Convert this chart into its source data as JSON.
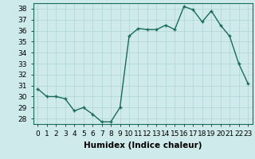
{
  "x": [
    0,
    1,
    2,
    3,
    4,
    5,
    6,
    7,
    8,
    9,
    10,
    11,
    12,
    13,
    14,
    15,
    16,
    17,
    18,
    19,
    20,
    21,
    22,
    23
  ],
  "y": [
    30.7,
    30.0,
    30.0,
    29.8,
    28.7,
    29.0,
    28.4,
    27.7,
    27.7,
    29.0,
    35.5,
    36.2,
    36.1,
    36.1,
    36.5,
    36.1,
    38.2,
    37.9,
    36.8,
    37.8,
    36.5,
    35.5,
    33.0,
    31.2
  ],
  "line_color": "#1a6b5a",
  "marker": "+",
  "marker_size": 3.5,
  "bg_color": "#ceeaea",
  "grid_color": "#b0d4d4",
  "xlabel": "Humidex (Indice chaleur)",
  "xlim": [
    -0.5,
    23.5
  ],
  "ylim": [
    27.5,
    38.5
  ],
  "yticks": [
    28,
    29,
    30,
    31,
    32,
    33,
    34,
    35,
    36,
    37,
    38
  ],
  "xticks": [
    0,
    1,
    2,
    3,
    4,
    5,
    6,
    7,
    8,
    9,
    10,
    11,
    12,
    13,
    14,
    15,
    16,
    17,
    18,
    19,
    20,
    21,
    22,
    23
  ],
  "xtick_labels": [
    "0",
    "1",
    "2",
    "3",
    "4",
    "5",
    "6",
    "7",
    "8",
    "9",
    "10",
    "11",
    "12",
    "13",
    "14",
    "15",
    "16",
    "17",
    "18",
    "19",
    "20",
    "21",
    "22",
    "23"
  ],
  "tick_fontsize": 6.5,
  "xlabel_fontsize": 7.5,
  "line_width": 1.0
}
